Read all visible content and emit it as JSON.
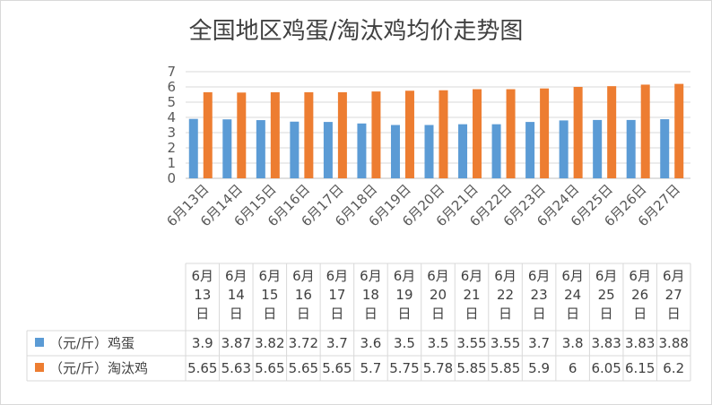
{
  "chart_data": {
    "type": "bar",
    "title": "全国地区鸡蛋/淘汰鸡均价走势图",
    "categories": [
      "6月13日",
      "6月14日",
      "6月15日",
      "6月16日",
      "6月17日",
      "6月18日",
      "6月19日",
      "6月20日",
      "6月21日",
      "6月22日",
      "6月23日",
      "6月24日",
      "6月25日",
      "6月26日",
      "6月27日"
    ],
    "series": [
      {
        "name": "（元/斤）鸡蛋",
        "color": "#5b9bd5",
        "values": [
          3.9,
          3.87,
          3.82,
          3.72,
          3.7,
          3.6,
          3.5,
          3.5,
          3.55,
          3.55,
          3.7,
          3.8,
          3.83,
          3.83,
          3.88
        ]
      },
      {
        "name": "（元/斤）淘汰鸡",
        "color": "#ed7d31",
        "values": [
          5.65,
          5.63,
          5.65,
          5.65,
          5.65,
          5.7,
          5.75,
          5.78,
          5.85,
          5.85,
          5.9,
          6,
          6.05,
          6.15,
          6.2
        ]
      }
    ],
    "table_values": [
      [
        "3.9",
        "3.87",
        "3.82",
        "3.72",
        "3.7",
        "3.6",
        "3.5",
        "3.5",
        "3.55",
        "3.55",
        "3.7",
        "3.8",
        "3.83",
        "3.83",
        "3.88"
      ],
      [
        "5.65",
        "5.63",
        "5.65",
        "5.65",
        "5.65",
        "5.7",
        "5.75",
        "5.78",
        "5.85",
        "5.85",
        "5.9",
        "6",
        "6.05",
        "6.15",
        "6.2"
      ]
    ],
    "ylim": [
      0,
      7
    ],
    "yticks": [
      "0",
      "1",
      "2",
      "3",
      "4",
      "5",
      "6",
      "7"
    ],
    "grid": true,
    "legend": "data-table"
  }
}
